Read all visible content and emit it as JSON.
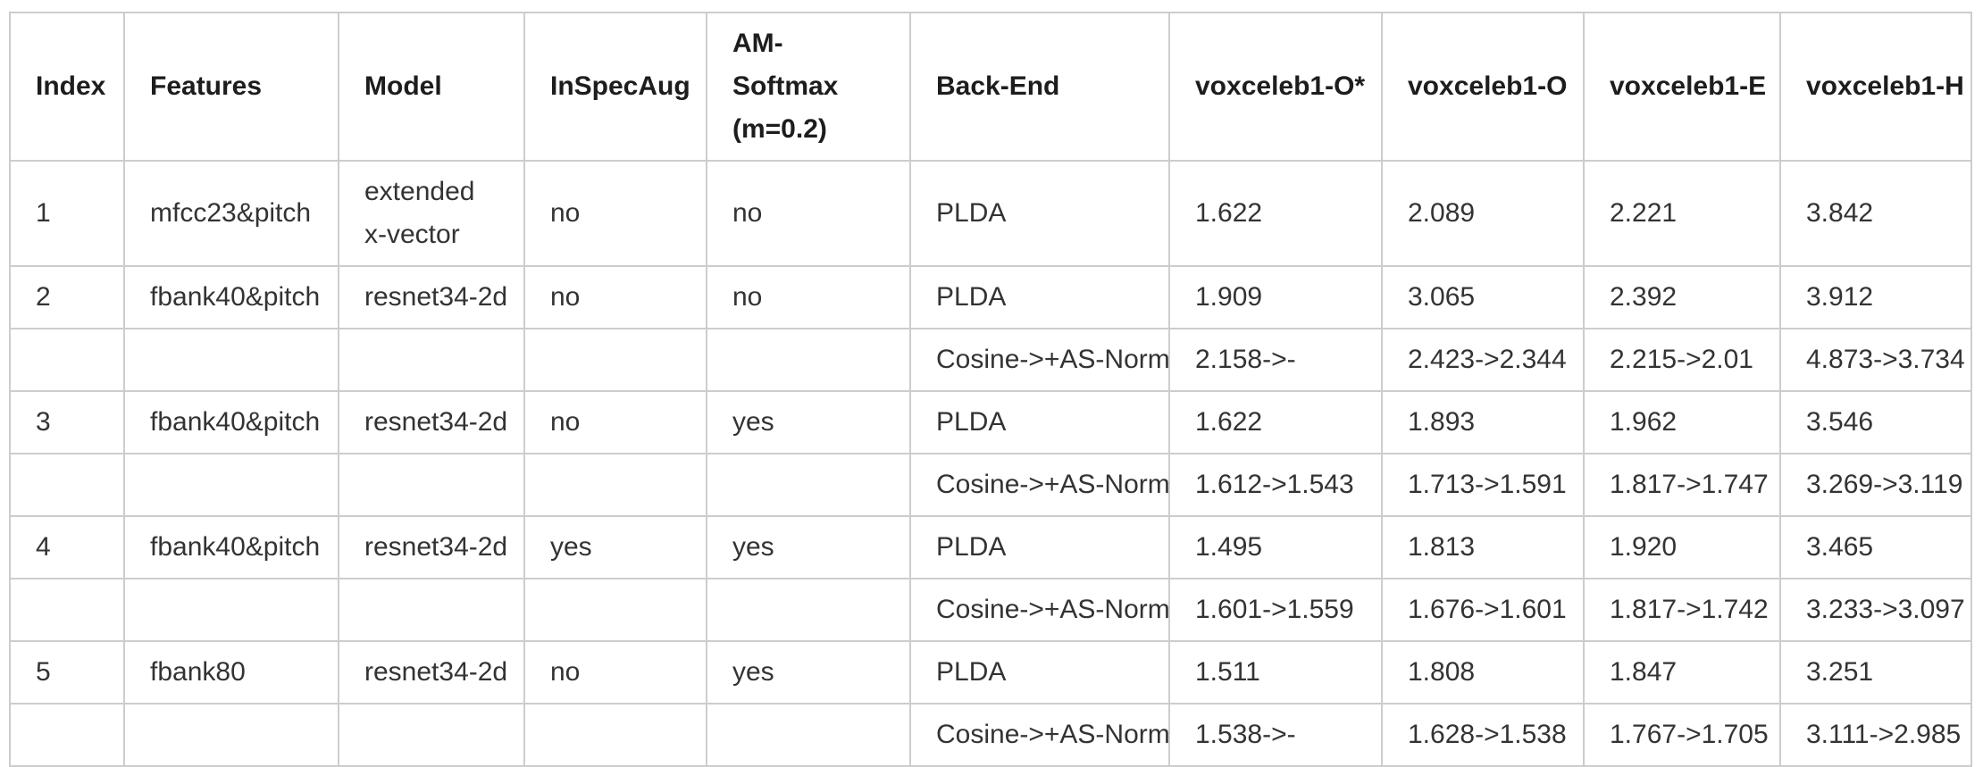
{
  "colors": {
    "background": "#ffffff",
    "border": "#cdcdcd",
    "header_text": "#1d1d1d",
    "body_text": "#333333"
  },
  "table": {
    "columns": [
      "Index",
      "Features",
      "Model",
      "InSpecAug",
      "AM-Softmax\n(m=0.2)",
      "Back-End",
      "voxceleb1-O*",
      "voxceleb1-O",
      "voxceleb1-E",
      "voxceleb1-H"
    ],
    "rows": [
      {
        "cells": [
          "1",
          "mfcc23&pitch",
          "extended\nx-vector",
          "no",
          "no",
          "PLDA",
          "1.622",
          "2.089",
          "2.221",
          "3.842"
        ]
      },
      {
        "cells": [
          "2",
          "fbank40&pitch",
          "resnet34-2d",
          "no",
          "no",
          "PLDA",
          "1.909",
          "3.065",
          "2.392",
          "3.912"
        ]
      },
      {
        "cells": [
          "",
          "",
          "",
          "",
          "",
          "Cosine->+AS-Norm",
          "2.158->-",
          "2.423->2.344",
          "2.215->2.01",
          "4.873->3.734"
        ]
      },
      {
        "cells": [
          "3",
          "fbank40&pitch",
          "resnet34-2d",
          "no",
          "yes",
          "PLDA",
          "1.622",
          "1.893",
          "1.962",
          "3.546"
        ]
      },
      {
        "cells": [
          "",
          "",
          "",
          "",
          "",
          "Cosine->+AS-Norm",
          "1.612->1.543",
          "1.713->1.591",
          "1.817->1.747",
          "3.269->3.119"
        ]
      },
      {
        "cells": [
          "4",
          "fbank40&pitch",
          "resnet34-2d",
          "yes",
          "yes",
          "PLDA",
          "1.495",
          "1.813",
          "1.920",
          "3.465"
        ]
      },
      {
        "cells": [
          "",
          "",
          "",
          "",
          "",
          "Cosine->+AS-Norm",
          "1.601->1.559",
          "1.676->1.601",
          "1.817->1.742",
          "3.233->3.097"
        ]
      },
      {
        "cells": [
          "5",
          "fbank80",
          "resnet34-2d",
          "no",
          "yes",
          "PLDA",
          "1.511",
          "1.808",
          "1.847",
          "3.251"
        ]
      },
      {
        "cells": [
          "",
          "",
          "",
          "",
          "",
          "Cosine->+AS-Norm",
          "1.538->-",
          "1.628->1.538",
          "1.767->1.705",
          "3.111->2.985"
        ]
      }
    ]
  }
}
